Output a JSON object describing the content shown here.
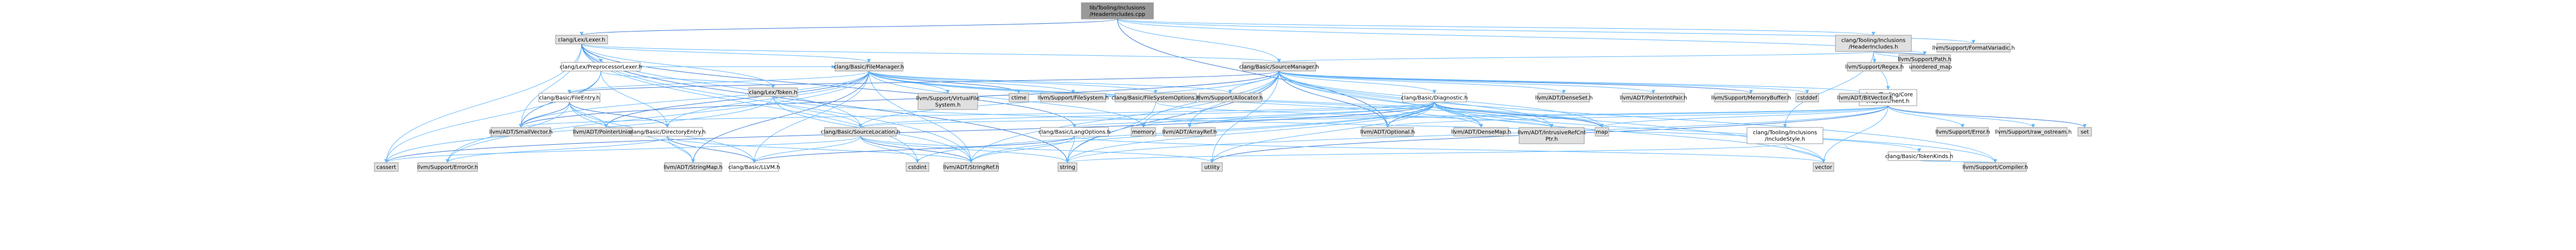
{
  "graph": {
    "colors": {
      "root_fill": "#999999",
      "file_fill": "#e0e0e0",
      "linked_fill": "#ffffff",
      "red_border": "#ff0000",
      "grey_border": "#999999",
      "edge": "#63b8ff",
      "edge_alt": "#3a7bd5"
    },
    "nodes": [
      {
        "id": "root",
        "label": "lib/Tooling/Inclusions\n/HeaderIncludes.cpp",
        "kind": "root"
      },
      {
        "id": "lexer",
        "label": "clang/Lex/Lexer.h",
        "kind": "file"
      },
      {
        "id": "hdrinc",
        "label": "clang/Tooling/Inclusions\n/HeaderIncludes.h",
        "kind": "file"
      },
      {
        "id": "formatvariadic",
        "label": "llvm/Support/FormatVariadic.h",
        "kind": "file"
      },
      {
        "id": "path",
        "label": "llvm/Support/Path.h",
        "kind": "file"
      },
      {
        "id": "ppoptlexer",
        "label": "clang/Lex/PreprocessorLexer.h",
        "kind": "red"
      },
      {
        "id": "filemanager",
        "label": "clang/Basic/FileManager.h",
        "kind": "file"
      },
      {
        "id": "sourcemanager",
        "label": "clang/Basic/SourceManager.h",
        "kind": "file"
      },
      {
        "id": "regex",
        "label": "llvm/Support/Regex.h",
        "kind": "file"
      },
      {
        "id": "unordered_map",
        "label": "unordered_map",
        "kind": "file"
      },
      {
        "id": "replacement",
        "label": "clang/Tooling/Core\n/Replacement.h",
        "kind": "red"
      },
      {
        "id": "token",
        "label": "clang/Lex/Token.h",
        "kind": "file"
      },
      {
        "id": "fileentry",
        "label": "clang/Basic/FileEntry.h",
        "kind": "red"
      },
      {
        "id": "vfs",
        "label": "llvm/Support/VirtualFile\nSystem.h",
        "kind": "file"
      },
      {
        "id": "ctime",
        "label": "ctime",
        "kind": "file"
      },
      {
        "id": "filesystem",
        "label": "llvm/Support/FileSystem.h",
        "kind": "file"
      },
      {
        "id": "fsoptions",
        "label": "clang/Basic/FileSystemOptions.h",
        "kind": "file"
      },
      {
        "id": "allocator",
        "label": "llvm/Support/Allocator.h",
        "kind": "file"
      },
      {
        "id": "diagnostic",
        "label": "clang/Basic/Diagnostic.h",
        "kind": "red"
      },
      {
        "id": "densesethdr",
        "label": "llvm/ADT/DenseSet.h",
        "kind": "file"
      },
      {
        "id": "pointerintpair",
        "label": "llvm/ADT/PointerIntPair.h",
        "kind": "file"
      },
      {
        "id": "memorybuffer",
        "label": "llvm/Support/MemoryBuffer.h",
        "kind": "file"
      },
      {
        "id": "cstddef",
        "label": "cstddef",
        "kind": "file"
      },
      {
        "id": "bitvector",
        "label": "llvm/ADT/BitVector.h",
        "kind": "file"
      },
      {
        "id": "inclusionstyle",
        "label": "clang/Tooling/Inclusions\n/IncludeStyle.h",
        "kind": "red"
      },
      {
        "id": "error",
        "label": "llvm/Support/Error.h",
        "kind": "file"
      },
      {
        "id": "rawostream",
        "label": "llvm/Support/raw_ostream.h",
        "kind": "file"
      },
      {
        "id": "set",
        "label": "set",
        "kind": "file"
      },
      {
        "id": "smallvector",
        "label": "llvm/ADT/SmallVector.h",
        "kind": "file"
      },
      {
        "id": "pointerunion",
        "label": "llvm/ADT/PointerUnion.h",
        "kind": "file"
      },
      {
        "id": "direntry",
        "label": "clang/Basic/DirectoryEntry.h",
        "kind": "red"
      },
      {
        "id": "sourcelocation",
        "label": "clang/Basic/SourceLocation.h",
        "kind": "file"
      },
      {
        "id": "memory",
        "label": "memory",
        "kind": "file"
      },
      {
        "id": "arrayref",
        "label": "llvm/ADT/ArrayRef.h",
        "kind": "file"
      },
      {
        "id": "optional",
        "label": "llvm/ADT/Optional.h",
        "kind": "file"
      },
      {
        "id": "densemap",
        "label": "llvm/ADT/DenseMap.h",
        "kind": "file"
      },
      {
        "id": "intrusiverefcnt",
        "label": "llvm/ADT/IntrusiveRefCnt\nPtr.h",
        "kind": "file"
      },
      {
        "id": "map",
        "label": "map",
        "kind": "file"
      },
      {
        "id": "langoptions",
        "label": "clang/Basic/LangOptions.h",
        "kind": "red"
      },
      {
        "id": "tokenkinds",
        "label": "clang/Basic/TokenKinds.h",
        "kind": "red"
      },
      {
        "id": "cassert",
        "label": "cassert",
        "kind": "file"
      },
      {
        "id": "errororhdr",
        "label": "llvm/Support/ErrorOr.h",
        "kind": "file"
      },
      {
        "id": "stringmap",
        "label": "llvm/ADT/StringMap.h",
        "kind": "file"
      },
      {
        "id": "llvmh",
        "label": "clang/Basic/LLVM.h",
        "kind": "red"
      },
      {
        "id": "cstdint",
        "label": "cstdint",
        "kind": "file"
      },
      {
        "id": "stringref",
        "label": "llvm/ADT/StringRef.h",
        "kind": "file"
      },
      {
        "id": "string",
        "label": "string",
        "kind": "file"
      },
      {
        "id": "utility",
        "label": "utility",
        "kind": "file"
      },
      {
        "id": "vector",
        "label": "vector",
        "kind": "file"
      },
      {
        "id": "compiler",
        "label": "llvm/Support/Compiler.h",
        "kind": "file"
      }
    ],
    "edges": [
      [
        "root",
        "lexer"
      ],
      [
        "root",
        "hdrinc"
      ],
      [
        "root",
        "formatvariadic"
      ],
      [
        "root",
        "path"
      ],
      [
        "root",
        "sourcemanager"
      ],
      [
        "root",
        "optional"
      ],
      [
        "lexer",
        "ppoptlexer"
      ],
      [
        "lexer",
        "filemanager"
      ],
      [
        "lexer",
        "token"
      ],
      [
        "lexer",
        "sourcelocation"
      ],
      [
        "lexer",
        "langoptions"
      ],
      [
        "lexer",
        "smallvector"
      ],
      [
        "lexer",
        "stringref"
      ],
      [
        "lexer",
        "cassert"
      ],
      [
        "lexer",
        "cstdint"
      ],
      [
        "lexer",
        "string"
      ],
      [
        "lexer",
        "sourcemanager"
      ],
      [
        "hdrinc",
        "sourcemanager"
      ],
      [
        "hdrinc",
        "replacement"
      ],
      [
        "hdrinc",
        "inclusionstyle"
      ],
      [
        "hdrinc",
        "path"
      ],
      [
        "hdrinc",
        "regex"
      ],
      [
        "hdrinc",
        "unordered_map"
      ],
      [
        "ppoptlexer",
        "filemanager"
      ],
      [
        "ppoptlexer",
        "token"
      ],
      [
        "ppoptlexer",
        "smallvector"
      ],
      [
        "ppoptlexer",
        "cassert"
      ],
      [
        "ppoptlexer",
        "direntry"
      ],
      [
        "filemanager",
        "fileentry"
      ],
      [
        "filemanager",
        "vfs"
      ],
      [
        "filemanager",
        "ctime"
      ],
      [
        "filemanager",
        "filesystem"
      ],
      [
        "filemanager",
        "fsoptions"
      ],
      [
        "filemanager",
        "allocator"
      ],
      [
        "filemanager",
        "smallvector"
      ],
      [
        "filemanager",
        "pointerunion"
      ],
      [
        "filemanager",
        "direntry"
      ],
      [
        "filemanager",
        "llvmh"
      ],
      [
        "filemanager",
        "densemap"
      ],
      [
        "filemanager",
        "intrusiverefcnt"
      ],
      [
        "filemanager",
        "stringmap"
      ],
      [
        "filemanager",
        "errororhdr"
      ],
      [
        "filemanager",
        "stringref"
      ],
      [
        "filemanager",
        "memory"
      ],
      [
        "filemanager",
        "map"
      ],
      [
        "sourcemanager",
        "fileentry"
      ],
      [
        "sourcemanager",
        "allocator"
      ],
      [
        "sourcemanager",
        "diagnostic"
      ],
      [
        "sourcemanager",
        "densesethdr"
      ],
      [
        "sourcemanager",
        "pointerintpair"
      ],
      [
        "sourcemanager",
        "memorybuffer"
      ],
      [
        "sourcemanager",
        "cstddef"
      ],
      [
        "sourcemanager",
        "bitvector"
      ],
      [
        "sourcemanager",
        "sourcelocation"
      ],
      [
        "sourcemanager",
        "arrayref"
      ],
      [
        "sourcemanager",
        "optional"
      ],
      [
        "sourcemanager",
        "densemap"
      ],
      [
        "sourcemanager",
        "intrusiverefcnt"
      ],
      [
        "sourcemanager",
        "map"
      ],
      [
        "sourcemanager",
        "memory"
      ],
      [
        "sourcemanager",
        "string"
      ],
      [
        "sourcemanager",
        "utility"
      ],
      [
        "sourcemanager",
        "vector"
      ],
      [
        "sourcemanager",
        "compiler"
      ],
      [
        "sourcemanager",
        "stringref"
      ],
      [
        "sourcemanager",
        "smallvector"
      ],
      [
        "replacement",
        "sourcelocation"
      ],
      [
        "replacement",
        "langoptions"
      ],
      [
        "replacement",
        "error"
      ],
      [
        "replacement",
        "rawostream"
      ],
      [
        "replacement",
        "set"
      ],
      [
        "replacement",
        "map"
      ],
      [
        "replacement",
        "string"
      ],
      [
        "replacement",
        "vector"
      ],
      [
        "replacement",
        "optional"
      ],
      [
        "replacement",
        "utility"
      ],
      [
        "token",
        "sourcelocation"
      ],
      [
        "token",
        "tokenkinds"
      ],
      [
        "token",
        "cassert"
      ],
      [
        "token",
        "stringref"
      ],
      [
        "fileentry",
        "direntry"
      ],
      [
        "fileentry",
        "llvmh"
      ],
      [
        "fileentry",
        "errororhdr"
      ],
      [
        "fileentry",
        "pointerunion"
      ],
      [
        "fileentry",
        "stringmap"
      ],
      [
        "fileentry",
        "smallvector"
      ],
      [
        "fsoptions",
        "string"
      ],
      [
        "fsoptions",
        "intrusiverefcnt"
      ],
      [
        "diagnostic",
        "sourcelocation"
      ],
      [
        "diagnostic",
        "arrayref"
      ],
      [
        "diagnostic",
        "optional"
      ],
      [
        "diagnostic",
        "densemap"
      ],
      [
        "diagnostic",
        "intrusiverefcnt"
      ],
      [
        "diagnostic",
        "smallvector"
      ],
      [
        "diagnostic",
        "compiler"
      ],
      [
        "diagnostic",
        "map"
      ],
      [
        "diagnostic",
        "memory"
      ],
      [
        "diagnostic",
        "string"
      ],
      [
        "diagnostic",
        "utility"
      ],
      [
        "diagnostic",
        "vector"
      ],
      [
        "diagnostic",
        "cassert"
      ],
      [
        "diagnostic",
        "cstdint"
      ],
      [
        "diagnostic",
        "stringref"
      ],
      [
        "inclusionstyle",
        "string"
      ],
      [
        "inclusionstyle",
        "vector"
      ],
      [
        "direntry",
        "llvmh"
      ],
      [
        "direntry",
        "errororhdr"
      ],
      [
        "direntry",
        "stringmap"
      ],
      [
        "direntry",
        "stringref"
      ],
      [
        "sourcelocation",
        "llvmh"
      ],
      [
        "sourcelocation",
        "stringref"
      ],
      [
        "sourcelocation",
        "cassert"
      ],
      [
        "sourcelocation",
        "cstdint"
      ],
      [
        "sourcelocation",
        "string"
      ],
      [
        "sourcelocation",
        "utility"
      ],
      [
        "langoptions",
        "llvmh"
      ],
      [
        "langoptions",
        "stringref"
      ],
      [
        "langoptions",
        "string"
      ],
      [
        "langoptions",
        "vector"
      ],
      [
        "tokenkinds",
        "compiler"
      ]
    ]
  }
}
